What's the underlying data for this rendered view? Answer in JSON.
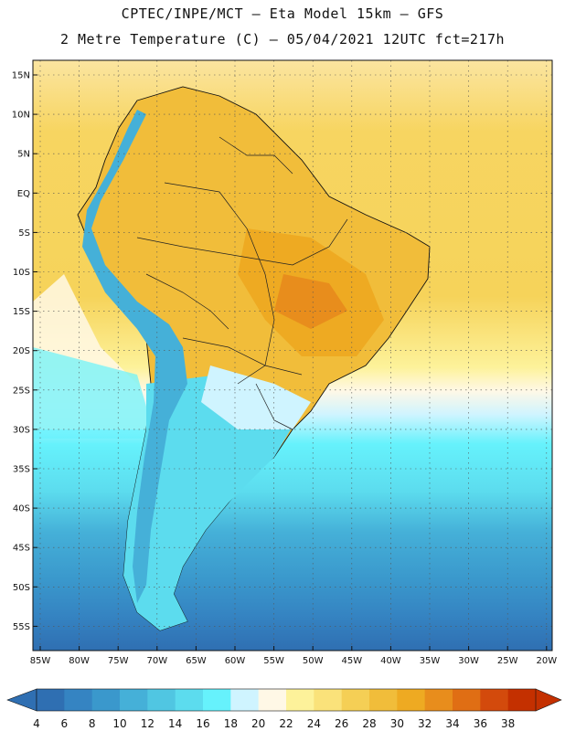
{
  "title_line1": "CPTEC/INPE/MCT –  Eta Model 15km – GFS",
  "title_line2": "2 Metre Temperature (C) – 05/04/2021 12UTC fct=217h",
  "lat_labels": [
    "15N",
    "10N",
    "5N",
    "EQ",
    "5S",
    "10S",
    "15S",
    "20S",
    "25S",
    "30S",
    "35S",
    "40S",
    "45S",
    "50S",
    "55S"
  ],
  "lon_labels": [
    "85W",
    "80W",
    "75W",
    "70W",
    "65W",
    "60W",
    "55W",
    "50W",
    "45W",
    "40W",
    "35W",
    "30W",
    "25W",
    "20W"
  ],
  "colorbar": {
    "values": [
      "4",
      "6",
      "8",
      "10",
      "12",
      "14",
      "16",
      "18",
      "20",
      "22",
      "24",
      "26",
      "28",
      "30",
      "32",
      "34",
      "36",
      "38"
    ],
    "colors": [
      "#2f6fb2",
      "#3584c2",
      "#3a98cc",
      "#45b0d8",
      "#50c6e2",
      "#5cdcee",
      "#66f2fc",
      "#cff4ff",
      "#fff8e6",
      "#fdf29a",
      "#fae27a",
      "#f5cf55",
      "#f1bd3a",
      "#eeaa22",
      "#e88d1c",
      "#e06e14",
      "#d34a0c",
      "#c43000"
    ]
  },
  "colors": {
    "ocean_tropical": "#f6d35a",
    "ocean_north": "#fae27a",
    "land_hot": "#eeaa22",
    "andes": "#5cdcee",
    "south_ocean": "#3584c2"
  }
}
